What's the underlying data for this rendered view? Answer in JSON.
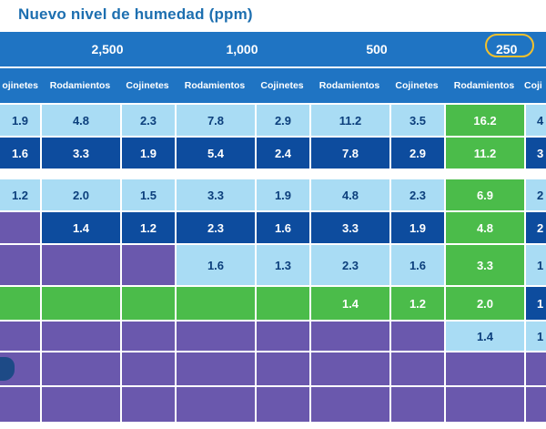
{
  "title": "Nuevo nivel de humedad (ppm)",
  "levels": [
    "2,500",
    "1,000",
    "500",
    "250"
  ],
  "subheaders": [
    "ojinetes",
    "Rodamientos",
    "Cojinetes",
    "Rodamientos",
    "Cojinetes",
    "Rodamientos",
    "Cojinetes",
    "Rodamientos",
    "Coji"
  ],
  "rows": [
    [
      "1.9",
      "4.8",
      "2.3",
      "7.8",
      "2.9",
      "11.2",
      "3.5",
      "16.2",
      "4"
    ],
    [
      "1.6",
      "3.3",
      "1.9",
      "5.4",
      "2.4",
      "7.8",
      "2.9",
      "11.2",
      "3"
    ],
    [
      "1.2",
      "2.0",
      "1.5",
      "3.3",
      "1.9",
      "4.8",
      "2.3",
      "6.9",
      "2"
    ],
    [
      "",
      "1.4",
      "1.2",
      "2.3",
      "1.6",
      "3.3",
      "1.9",
      "4.8",
      "2"
    ],
    [
      "",
      "",
      "",
      "1.6",
      "1.3",
      "2.3",
      "1.6",
      "3.3",
      "1"
    ],
    [
      "",
      "",
      "",
      "",
      "",
      "1.4",
      "1.2",
      "2.0",
      "1"
    ],
    [
      "",
      "",
      "",
      "",
      "",
      "",
      "",
      "1.4",
      "1"
    ]
  ],
  "highlight_level": "250",
  "colors": {
    "title": "#1d6fb0",
    "header": "#1f74c3",
    "light": "#a9dcf4",
    "mid": "#1b72c2",
    "dark": "#0d4c9e",
    "purple": "#6a58ad",
    "green": "#4bbc4a",
    "circle": "#f3c12d"
  }
}
